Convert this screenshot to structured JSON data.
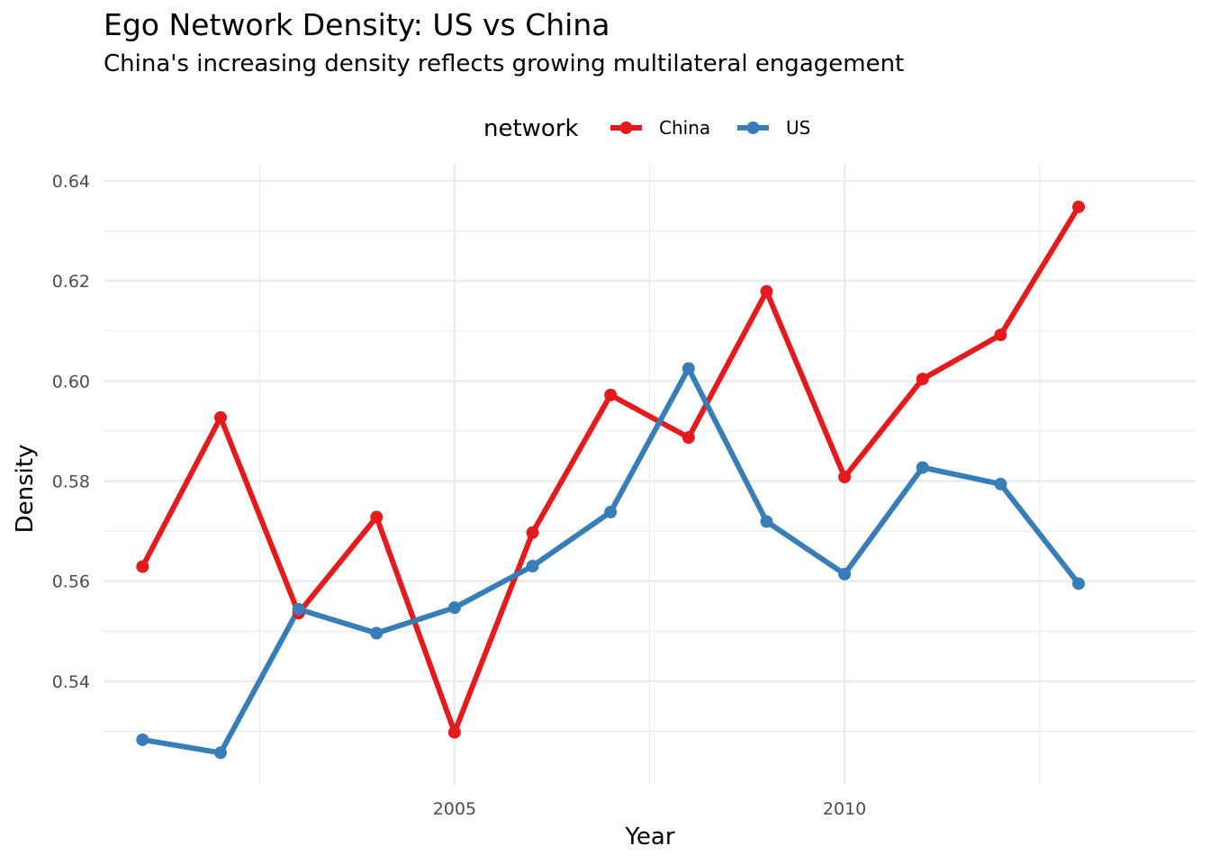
{
  "chart_data": {
    "type": "line",
    "title": "Ego Network Density: US vs China",
    "subtitle": "China's increasing density reflects growing multilateral engagement",
    "xlabel": "Year",
    "ylabel": "Density",
    "legend_title": "network",
    "legend_position": "top",
    "grid": true,
    "xlim": [
      2000.5,
      2014.5
    ],
    "ylim": [
      0.5193,
      0.6434
    ],
    "x_ticks": [
      2005,
      2010
    ],
    "x_tick_labels": [
      "2005",
      "2010"
    ],
    "y_ticks": [
      0.54,
      0.56,
      0.58,
      0.6,
      0.62,
      0.64
    ],
    "y_tick_labels": [
      "0.54",
      "0.56",
      "0.58",
      "0.60",
      "0.62",
      "0.64"
    ],
    "x": [
      2001,
      2002,
      2003,
      2004,
      2005,
      2006,
      2007,
      2008,
      2009,
      2010,
      2011,
      2012,
      2013
    ],
    "series": [
      {
        "name": "China",
        "color": "#e41a1c",
        "values": [
          0.5629,
          0.5927,
          0.5536,
          0.5728,
          0.5298,
          0.5697,
          0.5972,
          0.5887,
          0.6179,
          0.5808,
          0.6004,
          0.6092,
          0.6348
        ]
      },
      {
        "name": "US",
        "color": "#377eb8",
        "values": [
          0.5283,
          0.5257,
          0.5544,
          0.5496,
          0.5547,
          0.563,
          0.5738,
          0.6025,
          0.5719,
          0.5614,
          0.5827,
          0.5794,
          0.5595
        ]
      }
    ]
  }
}
